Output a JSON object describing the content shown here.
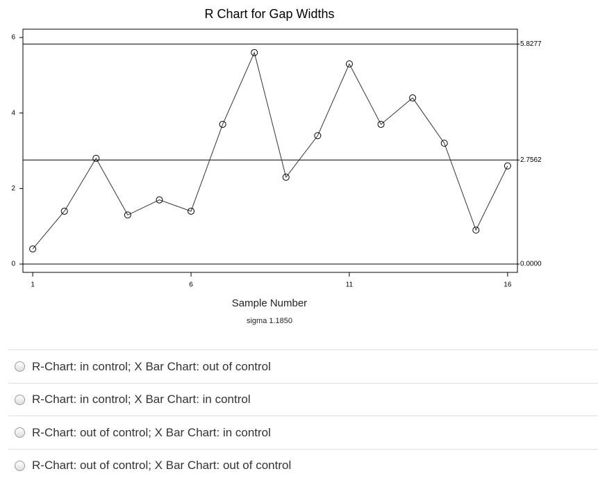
{
  "chart_data": {
    "type": "line",
    "title": "R Chart for Gap Widths",
    "x_label": "Sample Number",
    "annotation": "sigma 1.1850",
    "x": [
      1,
      2,
      3,
      4,
      5,
      6,
      7,
      8,
      9,
      10,
      11,
      12,
      13,
      14,
      15,
      16
    ],
    "values": [
      0.4,
      1.4,
      2.8,
      1.3,
      1.7,
      1.4,
      3.7,
      5.6,
      2.3,
      3.4,
      5.3,
      3.7,
      4.4,
      3.2,
      0.9,
      2.6
    ],
    "color": "#333333",
    "xlim": [
      0.69,
      16.31
    ],
    "ylim": [
      -0.22,
      6.22
    ],
    "xticks": [
      1,
      6,
      11,
      16
    ],
    "yticks": [
      0,
      2,
      4,
      6
    ],
    "reference_lines": [
      {
        "value": 5.8277,
        "label": "5.8277"
      },
      {
        "value": 2.7562,
        "label": "2.7562"
      },
      {
        "value": 0,
        "label": "0.0000"
      }
    ]
  },
  "options": [
    "R-Chart: in control; X Bar Chart: out of control",
    "R-Chart: in control; X Bar Chart: in control",
    "R-Chart: out of control; X Bar Chart: in control",
    "R-Chart: out of control; X Bar Chart: out of control"
  ]
}
